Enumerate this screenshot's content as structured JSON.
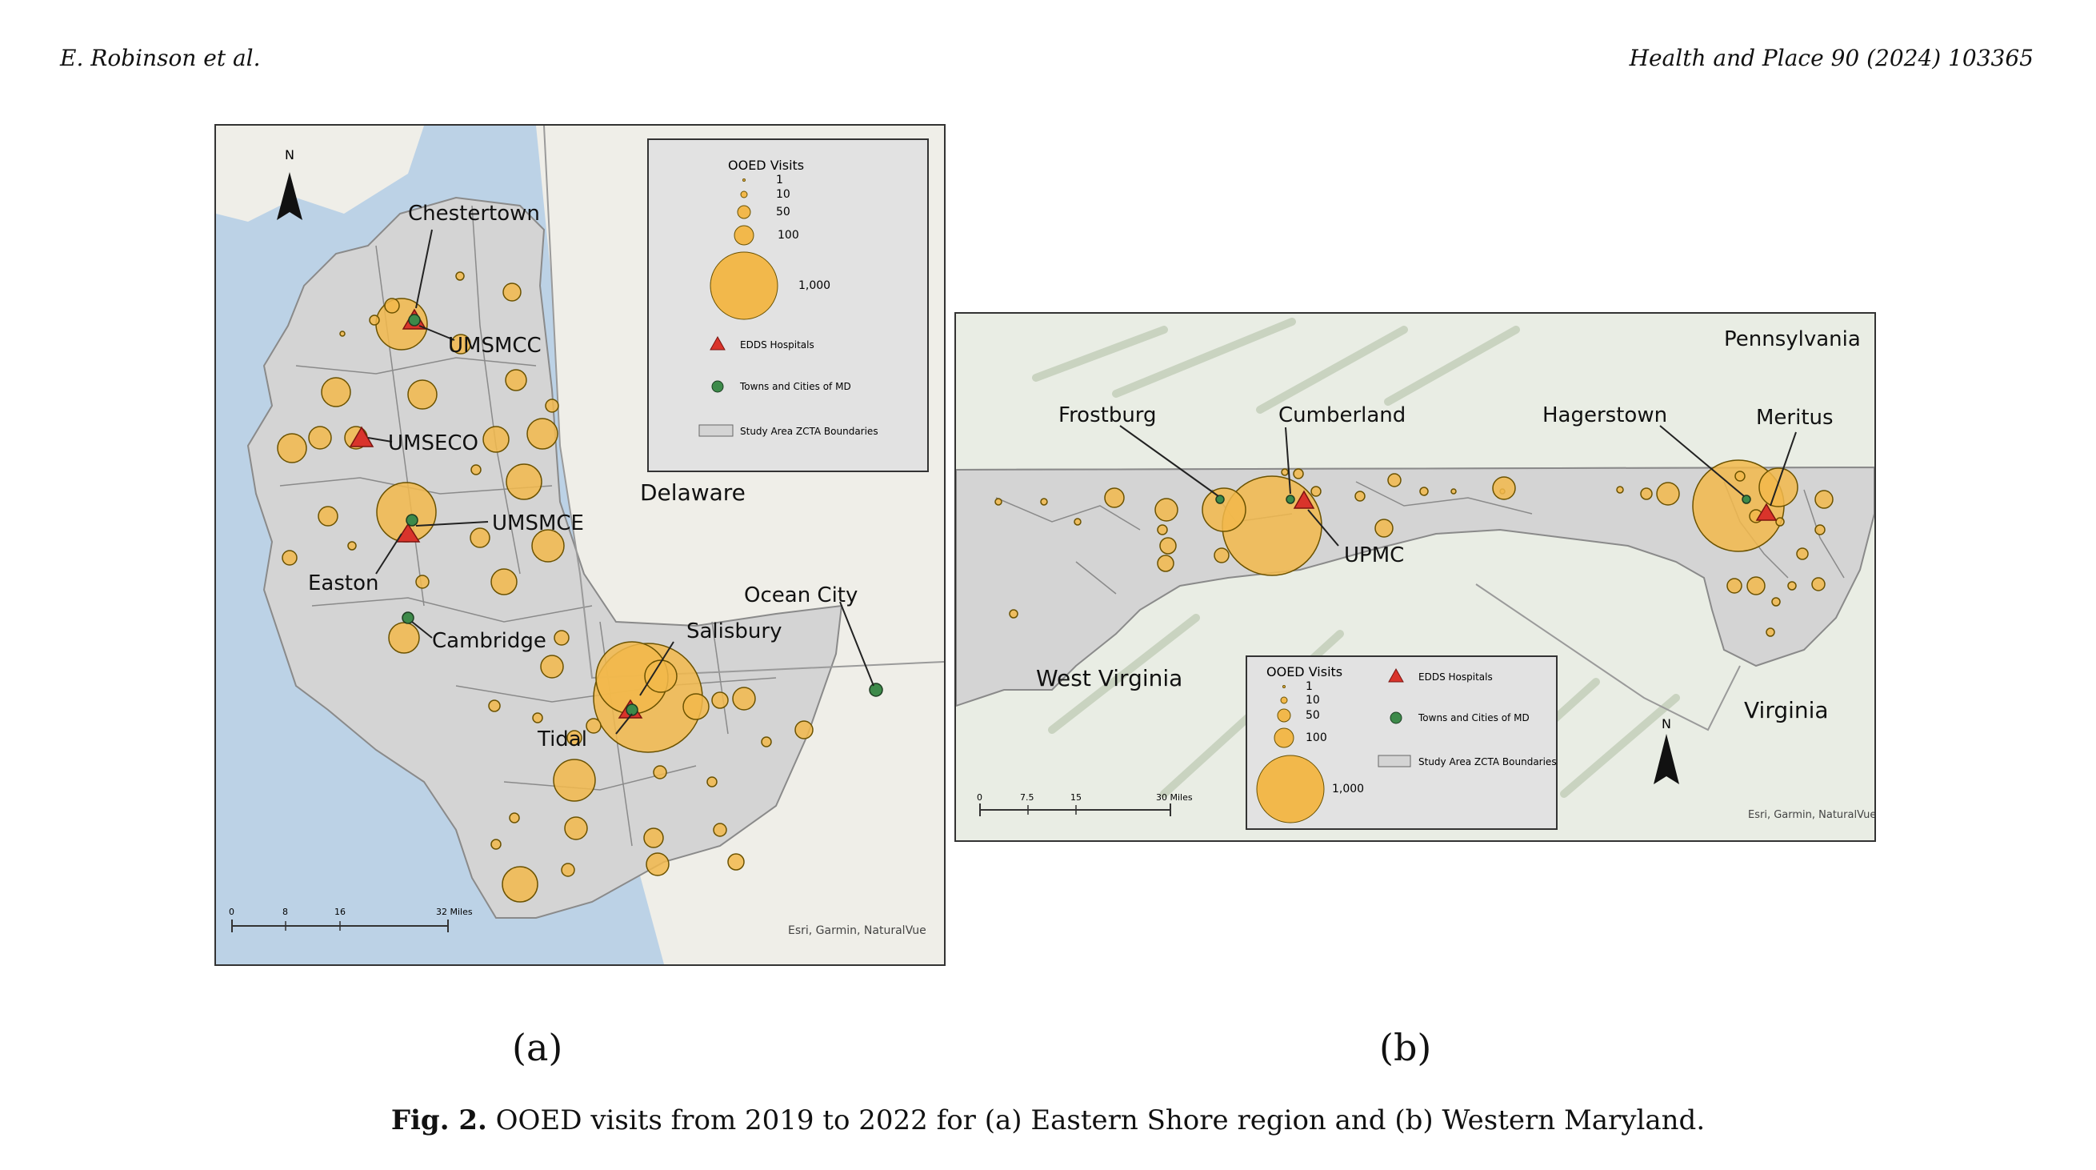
{
  "header": {
    "left": "E. Robinson et al.",
    "right": "Health and Place 90 (2024) 103365"
  },
  "map_a": {
    "north": "N",
    "places": {
      "chestertown": "Chestertown",
      "umsmcc": "UMSMCC",
      "umseco": "UMSECO",
      "umsmce": "UMSMCE",
      "easton": "Easton",
      "cambridge": "Cambridge",
      "delaware": "Delaware",
      "salisbury": "Salisbury",
      "ocean_city": "Ocean City",
      "tidal": "Tidal"
    },
    "legend": {
      "title": "OOED Visits",
      "sizes": [
        "1",
        "10",
        "50",
        "100",
        "1,000"
      ],
      "hospitals": "EDDS Hospitals",
      "towns": "Towns and Cities of MD",
      "zcta": "Study Area ZCTA Boundaries"
    },
    "scale": {
      "ticks": [
        "0",
        "8",
        "16",
        "32 Miles"
      ]
    },
    "credit": "Esri, Garmin, NaturalVue"
  },
  "map_b": {
    "north": "N",
    "places": {
      "pennsylvania": "Pennsylvania",
      "frostburg": "Frostburg",
      "cumberland": "Cumberland",
      "hagerstown": "Hagerstown",
      "meritus": "Meritus",
      "upmc": "UPMC",
      "west_virginia": "West Virginia",
      "virginia": "Virginia"
    },
    "legend": {
      "title": "OOED Visits",
      "sizes": [
        "1",
        "10",
        "50",
        "100",
        "1,000"
      ],
      "hospitals": "EDDS Hospitals",
      "towns": "Towns and Cities of MD",
      "zcta": "Study Area ZCTA Boundaries"
    },
    "scale": {
      "ticks": [
        "0",
        "7.5",
        "15",
        "30 Miles"
      ]
    },
    "credit": "Esri, Garmin, NaturalVue"
  },
  "subcaptions": {
    "a": "(a)",
    "b": "(b)"
  },
  "caption": {
    "label": "Fig. 2.",
    "text": " OOED visits from 2019 to 2022 for (a) Eastern Shore region and (b) Western Maryland."
  },
  "colors": {
    "circle": "#f2b84b",
    "hospital": "#d9342b",
    "town": "#3d8a4a",
    "zcta": "#d4d4d4",
    "water": "#bcd2e6"
  }
}
